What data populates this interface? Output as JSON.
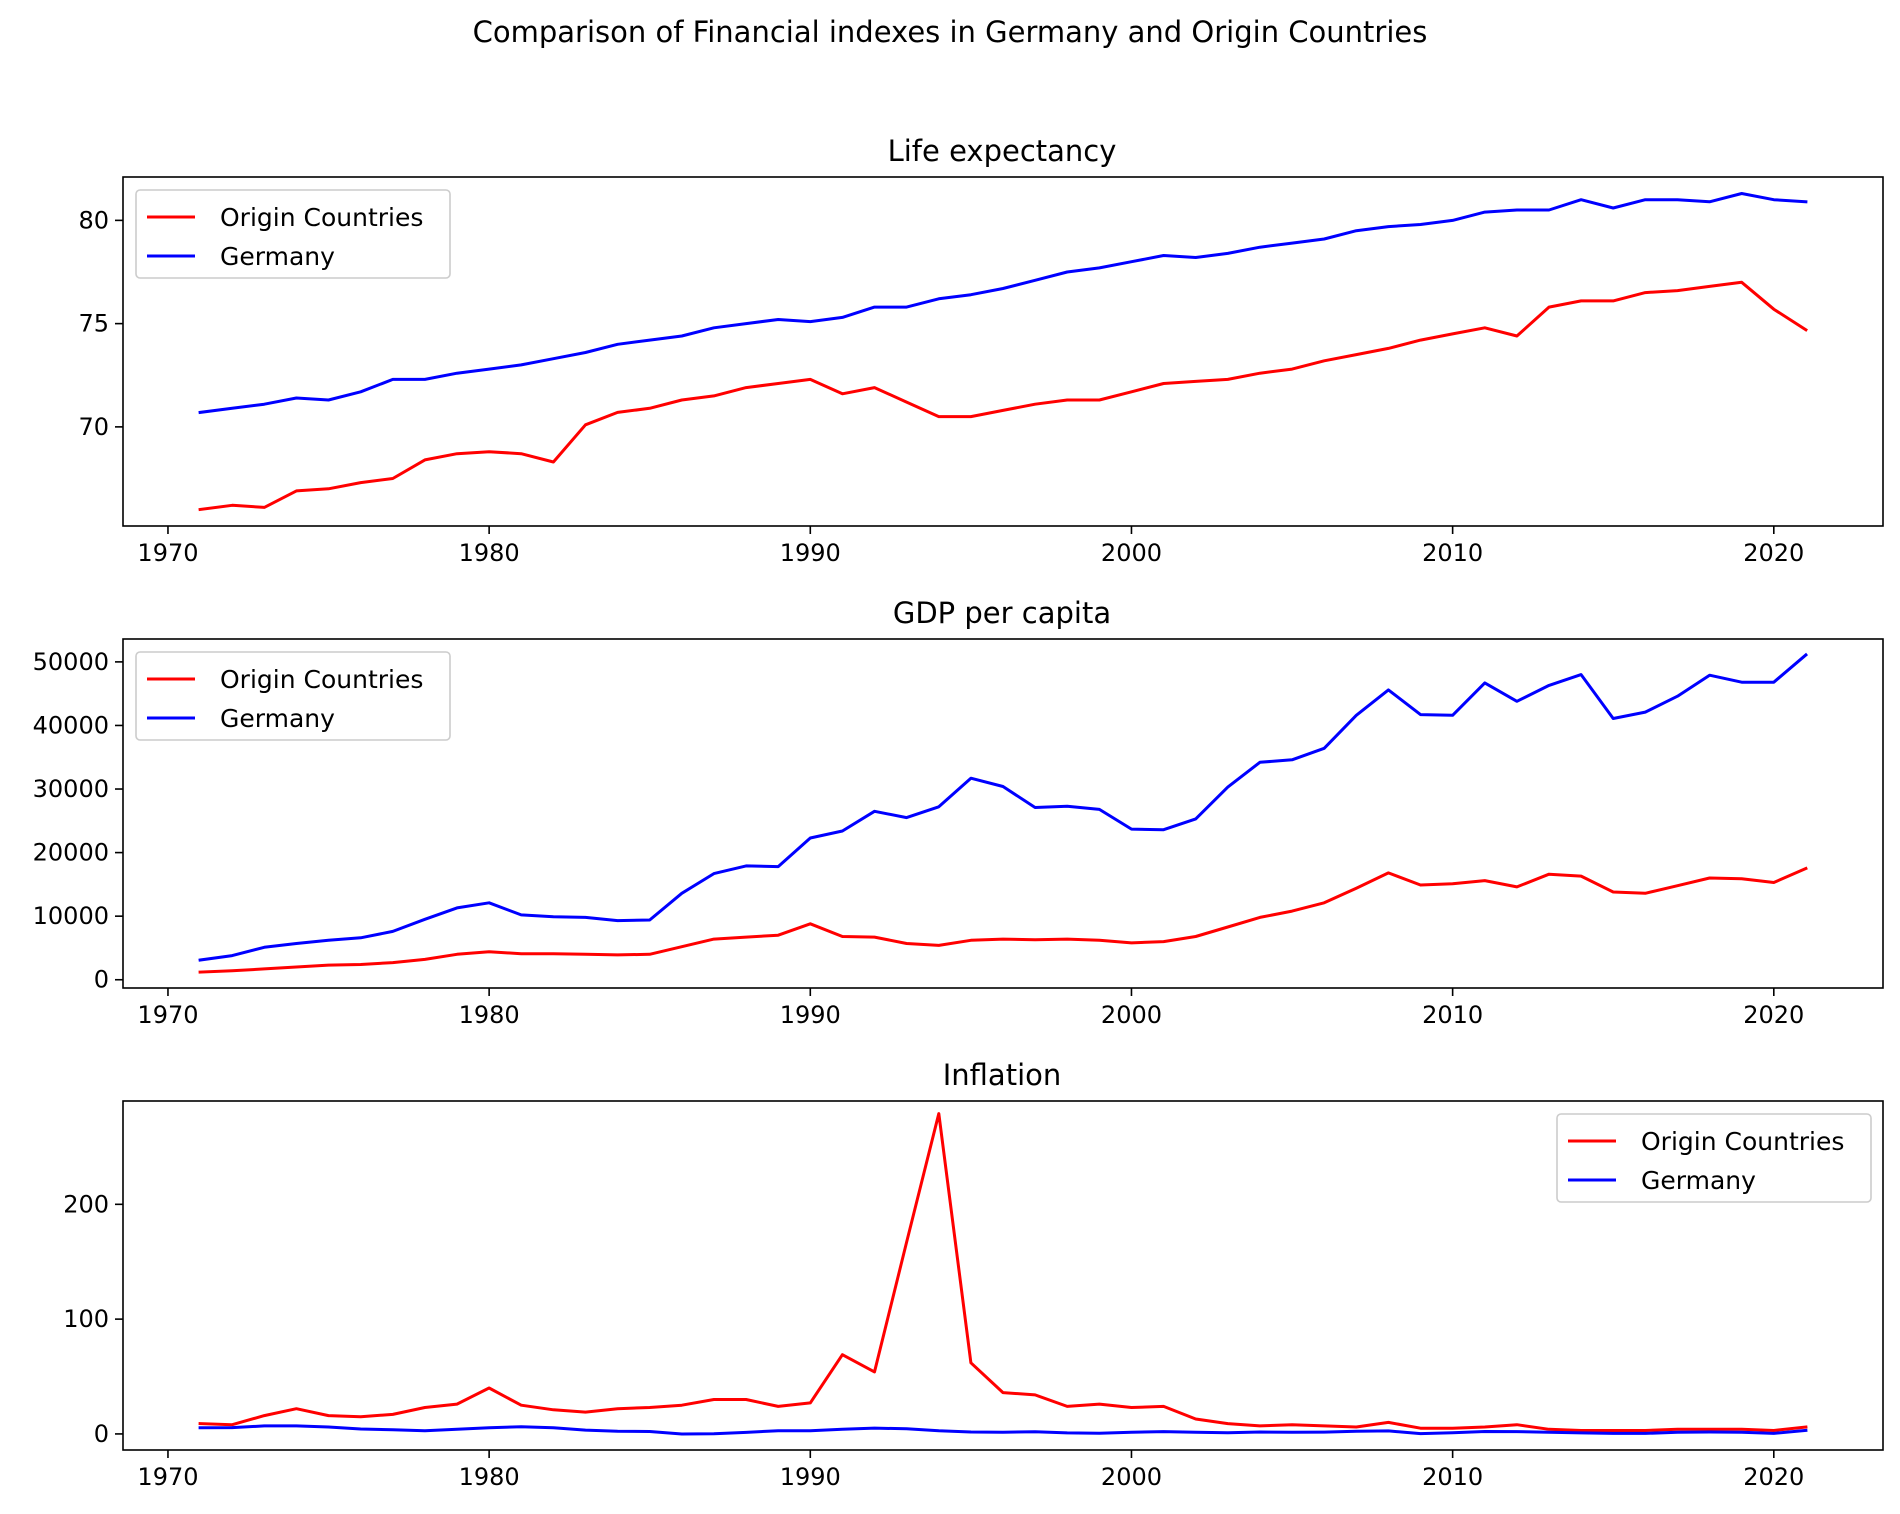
{
  "figure": {
    "suptitle": "Comparison of Financial indexes in Germany and Origin Countries"
  },
  "colors": {
    "origin": "#ff0000",
    "germany": "#0000ff",
    "axes": "#000000"
  },
  "chart_data": [
    {
      "type": "line",
      "title": "Life expectancy",
      "xlabel": "",
      "ylabel": "",
      "xlim": [
        1968.6,
        2023.4
      ],
      "ylim": [
        65.2,
        82.1
      ],
      "xticks": [
        1970,
        1980,
        1990,
        2000,
        2010,
        2020
      ],
      "yticks": [
        70,
        75,
        80
      ],
      "legend": "top-left",
      "x": [
        1971,
        1972,
        1973,
        1974,
        1975,
        1976,
        1977,
        1978,
        1979,
        1980,
        1981,
        1982,
        1983,
        1984,
        1985,
        1986,
        1987,
        1988,
        1989,
        1990,
        1991,
        1992,
        1993,
        1994,
        1995,
        1996,
        1997,
        1998,
        1999,
        2000,
        2001,
        2002,
        2003,
        2004,
        2005,
        2006,
        2007,
        2008,
        2009,
        2010,
        2011,
        2012,
        2013,
        2014,
        2015,
        2016,
        2017,
        2018,
        2019,
        2020,
        2021
      ],
      "series": [
        {
          "name": "Origin Countries",
          "color": "#ff0000",
          "values": [
            66.0,
            66.2,
            66.1,
            66.9,
            67.0,
            67.3,
            67.5,
            68.4,
            68.7,
            68.8,
            68.7,
            68.3,
            70.1,
            70.7,
            70.9,
            71.3,
            71.5,
            71.9,
            72.1,
            72.3,
            71.6,
            71.9,
            71.2,
            70.5,
            70.5,
            70.8,
            71.1,
            71.3,
            71.3,
            71.7,
            72.1,
            72.2,
            72.3,
            72.6,
            72.8,
            73.2,
            73.5,
            73.8,
            74.2,
            74.5,
            74.8,
            74.4,
            75.8,
            76.1,
            76.1,
            76.5,
            76.6,
            76.8,
            77.0,
            75.7,
            74.7
          ]
        },
        {
          "name": "Germany",
          "color": "#0000ff",
          "values": [
            70.7,
            70.9,
            71.1,
            71.4,
            71.3,
            71.7,
            72.3,
            72.3,
            72.6,
            72.8,
            73.0,
            73.3,
            73.6,
            74.0,
            74.2,
            74.4,
            74.8,
            75.0,
            75.2,
            75.1,
            75.3,
            75.8,
            75.8,
            76.2,
            76.4,
            76.7,
            77.1,
            77.5,
            77.7,
            78.0,
            78.3,
            78.2,
            78.4,
            78.7,
            78.9,
            79.1,
            79.5,
            79.7,
            79.8,
            80.0,
            80.4,
            80.5,
            80.5,
            81.0,
            80.6,
            81.0,
            81.0,
            80.9,
            81.3,
            81.0,
            80.9
          ]
        }
      ]
    },
    {
      "type": "line",
      "title": "GDP per capita",
      "xlabel": "",
      "ylabel": "",
      "xlim": [
        1968.6,
        2023.4
      ],
      "ylim": [
        -1300,
        53600
      ],
      "xticks": [
        1970,
        1980,
        1990,
        2000,
        2010,
        2020
      ],
      "yticks": [
        0,
        10000,
        20000,
        30000,
        40000,
        50000
      ],
      "legend": "top-left",
      "x": [
        1971,
        1972,
        1973,
        1974,
        1975,
        1976,
        1977,
        1978,
        1979,
        1980,
        1981,
        1982,
        1983,
        1984,
        1985,
        1986,
        1987,
        1988,
        1989,
        1990,
        1991,
        1992,
        1993,
        1994,
        1995,
        1996,
        1997,
        1998,
        1999,
        2000,
        2001,
        2002,
        2003,
        2004,
        2005,
        2006,
        2007,
        2008,
        2009,
        2010,
        2011,
        2012,
        2013,
        2014,
        2015,
        2016,
        2017,
        2018,
        2019,
        2020,
        2021
      ],
      "series": [
        {
          "name": "Origin Countries",
          "color": "#ff0000",
          "values": [
            1200,
            1400,
            1700,
            2000,
            2300,
            2400,
            2700,
            3200,
            4000,
            4400,
            4100,
            4100,
            4000,
            3900,
            4000,
            5200,
            6400,
            6700,
            7000,
            8800,
            6800,
            6700,
            5700,
            5400,
            6200,
            6400,
            6300,
            6400,
            6200,
            5800,
            6000,
            6800,
            8300,
            9800,
            10800,
            12100,
            14400,
            16800,
            14900,
            15100,
            15600,
            14600,
            16600,
            16300,
            13800,
            13600,
            14800,
            16000,
            15900,
            15300,
            17500
          ]
        },
        {
          "name": "Germany",
          "color": "#0000ff",
          "values": [
            3100,
            3800,
            5100,
            5700,
            6200,
            6600,
            7600,
            9500,
            11300,
            12100,
            10200,
            9900,
            9800,
            9300,
            9400,
            13600,
            16700,
            17900,
            17800,
            22300,
            23400,
            26500,
            25500,
            27200,
            31700,
            30400,
            27100,
            27300,
            26800,
            23700,
            23600,
            25300,
            30300,
            34200,
            34600,
            36400,
            41600,
            45600,
            41700,
            41600,
            46700,
            43800,
            46300,
            48000,
            41100,
            42100,
            44600,
            47900,
            46800,
            46800,
            51100
          ]
        }
      ]
    },
    {
      "type": "line",
      "title": "Inflation",
      "xlabel": "",
      "ylabel": "",
      "xlim": [
        1968.6,
        2023.4
      ],
      "ylim": [
        -14,
        290
      ],
      "xticks": [
        1970,
        1980,
        1990,
        2000,
        2010,
        2020
      ],
      "yticks": [
        0,
        100,
        200
      ],
      "legend": "top-right",
      "x": [
        1971,
        1972,
        1973,
        1974,
        1975,
        1976,
        1977,
        1978,
        1979,
        1980,
        1981,
        1982,
        1983,
        1984,
        1985,
        1986,
        1987,
        1988,
        1989,
        1990,
        1991,
        1992,
        1993,
        1994,
        1995,
        1996,
        1997,
        1998,
        1999,
        2000,
        2001,
        2002,
        2003,
        2004,
        2005,
        2006,
        2007,
        2008,
        2009,
        2010,
        2011,
        2012,
        2013,
        2014,
        2015,
        2016,
        2017,
        2018,
        2019,
        2020,
        2021
      ],
      "series": [
        {
          "name": "Origin Countries",
          "color": "#ff0000",
          "values": [
            9,
            8,
            16,
            22,
            16,
            15,
            17,
            23,
            26,
            40,
            25,
            21,
            19,
            22,
            23,
            25,
            30,
            30,
            24,
            27,
            69,
            54,
            167,
            279,
            62,
            36,
            34,
            24,
            26,
            23,
            24,
            13,
            9,
            7,
            8,
            7,
            6,
            10,
            5,
            5,
            6,
            8,
            4,
            3,
            3,
            3,
            4,
            4,
            4,
            3,
            6
          ]
        },
        {
          "name": "Germany",
          "color": "#0000ff",
          "values": [
            5.3,
            5.5,
            7,
            7,
            6,
            4.3,
            3.7,
            2.7,
            4.1,
            5.4,
            6.3,
            5.3,
            3.3,
            2.4,
            2.1,
            -0.1,
            0.2,
            1.3,
            2.8,
            2.7,
            4,
            5.1,
            4.5,
            2.7,
            1.7,
            1.4,
            1.9,
            0.9,
            0.6,
            1.4,
            2,
            1.4,
            1,
            1.7,
            1.5,
            1.6,
            2.3,
            2.6,
            0.3,
            1.1,
            2.1,
            2,
            1.5,
            0.9,
            0.5,
            0.5,
            1.5,
            1.7,
            1.4,
            0.5,
            3.1
          ]
        }
      ]
    }
  ]
}
